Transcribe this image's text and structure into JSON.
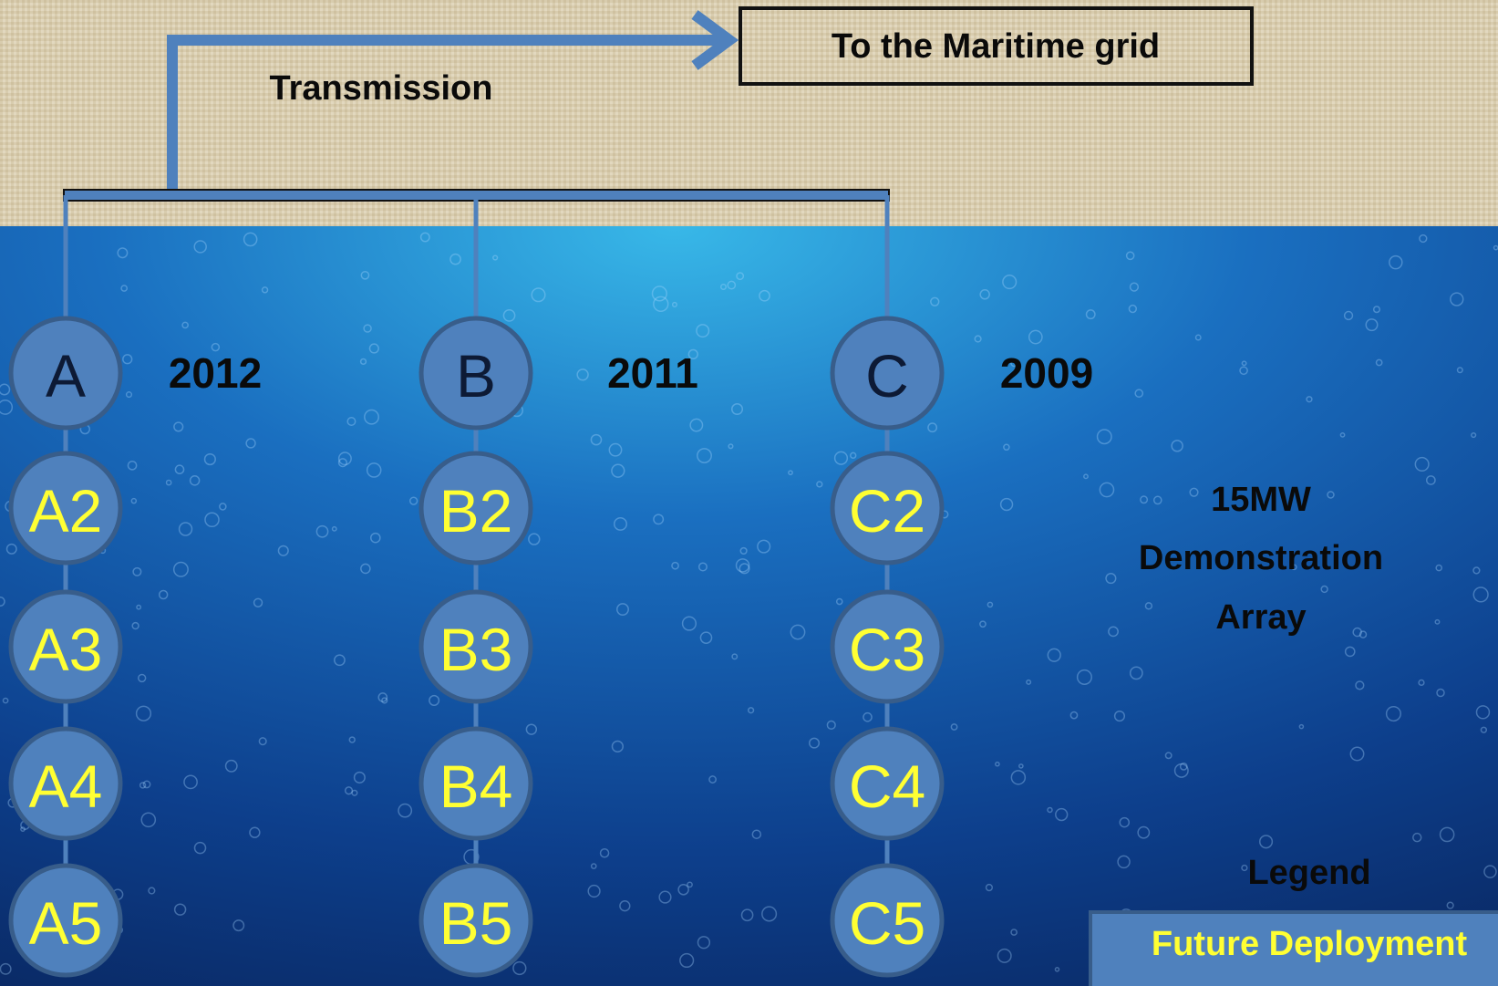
{
  "transmission_label": "Transmission",
  "destination": "To the Maritime grid",
  "columns": [
    {
      "head": "A",
      "year": "2012",
      "units": [
        "A2",
        "A3",
        "A4",
        "A5"
      ]
    },
    {
      "head": "B",
      "year": "2011",
      "units": [
        "B2",
        "B3",
        "B4",
        "B5"
      ]
    },
    {
      "head": "C",
      "year": "2009",
      "units": [
        "C2",
        "C3",
        "C4",
        "C5"
      ]
    }
  ],
  "array_label": [
    "15MW",
    "Demonstration",
    "Array"
  ],
  "legend": {
    "title": "Legend",
    "items": [
      "Future Deployment"
    ]
  }
}
